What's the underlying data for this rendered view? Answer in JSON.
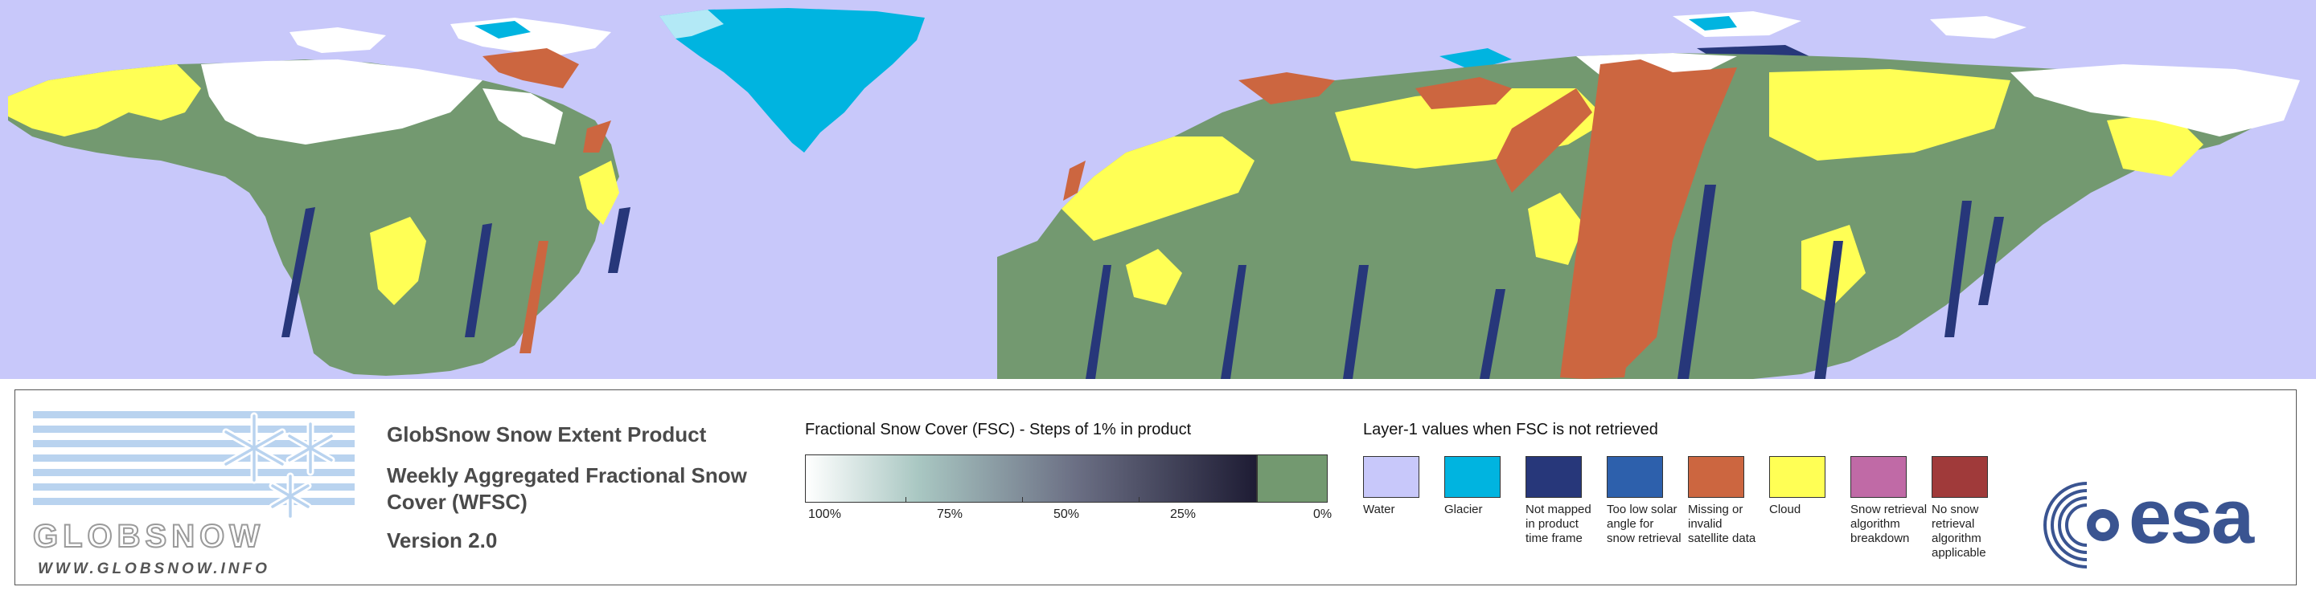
{
  "map": {
    "colors": {
      "ocean": "#c8c8fa",
      "land_snow_free": "#739970",
      "snow": "#ffffff",
      "cloud": "#ffff55",
      "missing": "#cc6640",
      "glacier": "#00b4e0",
      "not_mapped": "#27377a",
      "too_low_sun": "#2d60ac"
    }
  },
  "logo": {
    "brand": "GLOBSNOW",
    "url": "WWW.GLOBSNOW.INFO"
  },
  "product": {
    "title": "GlobSnow Snow Extent Product",
    "subtitle": "Weekly Aggregated Fractional Snow Cover (WFSC)",
    "version": "Version 2.0"
  },
  "fsc_scale": {
    "title": "Fractional Snow Cover (FSC) - Steps of 1% in product",
    "ticks": [
      "100%",
      "75%",
      "50%",
      "25%",
      "0%"
    ],
    "colors": {
      "start": "#ffffff",
      "end": "#1e1c34",
      "snow_free": "#739970"
    }
  },
  "layer1": {
    "title": "Layer-1 values when FSC is not retrieved",
    "items": [
      {
        "label": "Water",
        "color": "#c8c8fa"
      },
      {
        "label": "Glacier",
        "color": "#00b4e0"
      },
      {
        "label": "Not mapped in product time frame",
        "color": "#27377a"
      },
      {
        "label": "Too low solar angle for snow retrieval",
        "color": "#2d60ac"
      },
      {
        "label": "Missing or invalid satellite data",
        "color": "#cc6640"
      },
      {
        "label": "Cloud",
        "color": "#ffff55"
      },
      {
        "label": "Snow retrieval algorithm breakdown",
        "color": "#c06aa6"
      },
      {
        "label": "No snow retrieval algorithm applicable",
        "color": "#a03a3a"
      }
    ]
  },
  "esa_logo": {
    "text": "esa",
    "color": "#3a5491"
  }
}
